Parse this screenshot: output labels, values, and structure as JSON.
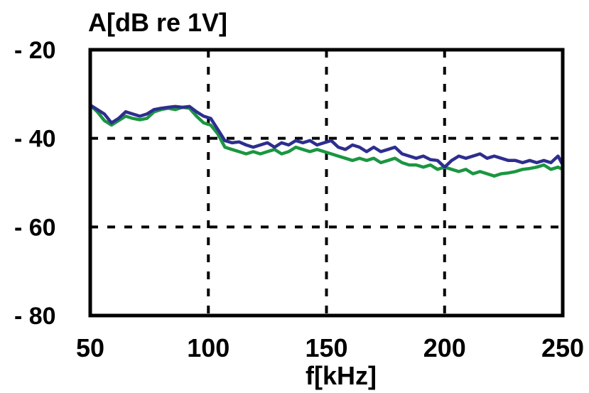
{
  "chart_data": {
    "type": "line",
    "ylabel": "A[dB re 1V]",
    "xlabel": "f[kHz]",
    "xlim": [
      50,
      250
    ],
    "ylim": [
      -80,
      -20
    ],
    "xticks": [
      50,
      100,
      150,
      200,
      250
    ],
    "yticks": [
      -20,
      -40,
      -60,
      -80
    ],
    "xtick_labels": [
      "50",
      "100",
      "150",
      "200",
      "250"
    ],
    "ytick_labels": [
      "- 20",
      "- 40",
      "- 60",
      "- 80"
    ],
    "grid": true,
    "series": [
      {
        "color": "#2e2e8f",
        "x": [
          50,
          53,
          56,
          59,
          62,
          65,
          68,
          71,
          74,
          77,
          80,
          83,
          86,
          89,
          92,
          95,
          98,
          101,
          104,
          107,
          110,
          113,
          116,
          119,
          122,
          125,
          128,
          131,
          134,
          137,
          140,
          143,
          146,
          149,
          152,
          155,
          158,
          161,
          164,
          167,
          170,
          173,
          176,
          179,
          182,
          185,
          188,
          191,
          194,
          197,
          200,
          203,
          206,
          209,
          212,
          215,
          218,
          221,
          224,
          227,
          230,
          233,
          236,
          239,
          242,
          245,
          248,
          250
        ],
        "y": [
          -32.5,
          -33.5,
          -34.5,
          -36.5,
          -35.5,
          -34,
          -34.5,
          -35,
          -34.5,
          -33.5,
          -33.2,
          -33,
          -32.8,
          -33,
          -32.8,
          -34,
          -35,
          -35.5,
          -38,
          -40.5,
          -41,
          -40.8,
          -41.5,
          -42,
          -41.5,
          -41,
          -42,
          -41,
          -41.5,
          -40.5,
          -41,
          -40.5,
          -41.5,
          -41,
          -40.5,
          -42,
          -42.5,
          -41.5,
          -42,
          -43,
          -42,
          -43,
          -42.5,
          -42,
          -43.5,
          -44,
          -44.5,
          -44,
          -44.8,
          -45,
          -46.5,
          -45,
          -44,
          -44.5,
          -44,
          -43.5,
          -44.5,
          -44,
          -44.5,
          -45,
          -45,
          -45.5,
          -45,
          -45.5,
          -45,
          -45.5,
          -44,
          -46
        ]
      },
      {
        "color": "#1a9641",
        "x": [
          50,
          53,
          56,
          59,
          62,
          65,
          68,
          71,
          74,
          77,
          80,
          83,
          86,
          89,
          92,
          95,
          98,
          101,
          104,
          107,
          110,
          113,
          116,
          119,
          122,
          125,
          128,
          131,
          134,
          137,
          140,
          143,
          146,
          149,
          152,
          155,
          158,
          161,
          164,
          167,
          170,
          173,
          176,
          179,
          182,
          185,
          188,
          191,
          194,
          197,
          200,
          203,
          206,
          209,
          212,
          215,
          218,
          221,
          224,
          227,
          230,
          233,
          236,
          239,
          242,
          245,
          248,
          250
        ],
        "y": [
          -32.5,
          -34,
          -36,
          -37,
          -36,
          -35,
          -35.5,
          -35.8,
          -35.5,
          -34,
          -33.5,
          -33.2,
          -33.5,
          -33,
          -33.2,
          -35,
          -36.5,
          -37,
          -39,
          -42,
          -42.5,
          -43,
          -43.5,
          -43,
          -43.5,
          -43,
          -42.5,
          -43.5,
          -43,
          -42,
          -42.5,
          -43,
          -42.5,
          -43,
          -43.5,
          -44,
          -44.5,
          -45,
          -44.5,
          -45,
          -44.5,
          -45.5,
          -45,
          -44.5,
          -45.5,
          -46,
          -46,
          -46.5,
          -46,
          -47,
          -46.5,
          -47,
          -47.5,
          -47,
          -48,
          -47.5,
          -48,
          -48.5,
          -48,
          -47.8,
          -47.5,
          -47,
          -46.8,
          -46.5,
          -46,
          -47,
          -46.5,
          -47
        ]
      }
    ]
  }
}
